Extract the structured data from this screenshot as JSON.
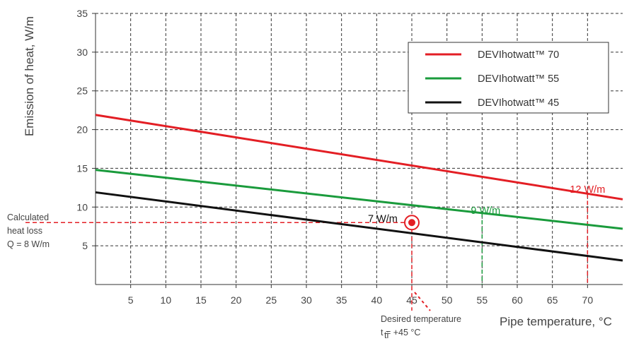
{
  "chart_data": {
    "type": "line",
    "ylabel": "Emission of heat, W/m",
    "xlabel": "Pipe temperature, °C",
    "xlim": [
      0,
      75
    ],
    "ylim": [
      0,
      35
    ],
    "x_ticks": [
      5,
      10,
      15,
      20,
      25,
      30,
      35,
      40,
      45,
      50,
      55,
      60,
      65,
      70
    ],
    "y_ticks": [
      5,
      10,
      15,
      20,
      25,
      30,
      35
    ],
    "grid": true,
    "legend_position": "top-right",
    "series": [
      {
        "name": "DEVIhotwatt™ 70",
        "color": "#e31e24",
        "x": [
          0,
          75
        ],
        "y": [
          21.9,
          11.0
        ]
      },
      {
        "name": "DEVIhotwatt™ 55",
        "color": "#1a9b3c",
        "x": [
          0,
          75
        ],
        "y": [
          14.8,
          7.2
        ]
      },
      {
        "name": "DEVIhotwatt™ 45",
        "color": "#111111",
        "x": [
          0,
          75
        ],
        "y": [
          11.9,
          3.1
        ]
      }
    ],
    "annotations": {
      "heat_loss_lines": [
        "Calculated",
        "heat loss",
        "Q = 8 W/m"
      ],
      "heat_loss_value": 8,
      "desired_temp_label": "Desired temperature",
      "desired_temp_value": "t  = +45 °C",
      "desired_temp_sub": "ti",
      "desired_temp_x": 45,
      "marker": {
        "x": 45,
        "y": 8,
        "color": "#e31e24"
      },
      "label_45": {
        "text": "7 W/m",
        "x": 45,
        "y": 8.5,
        "color": "#111111"
      },
      "label_55": {
        "text": "9 W/m",
        "x": 55,
        "y": 9.5,
        "color": "#1a9b3c"
      },
      "label_70": {
        "text": "12 W/m",
        "x": 70,
        "y": 12.5,
        "color": "#e31e24"
      }
    }
  }
}
